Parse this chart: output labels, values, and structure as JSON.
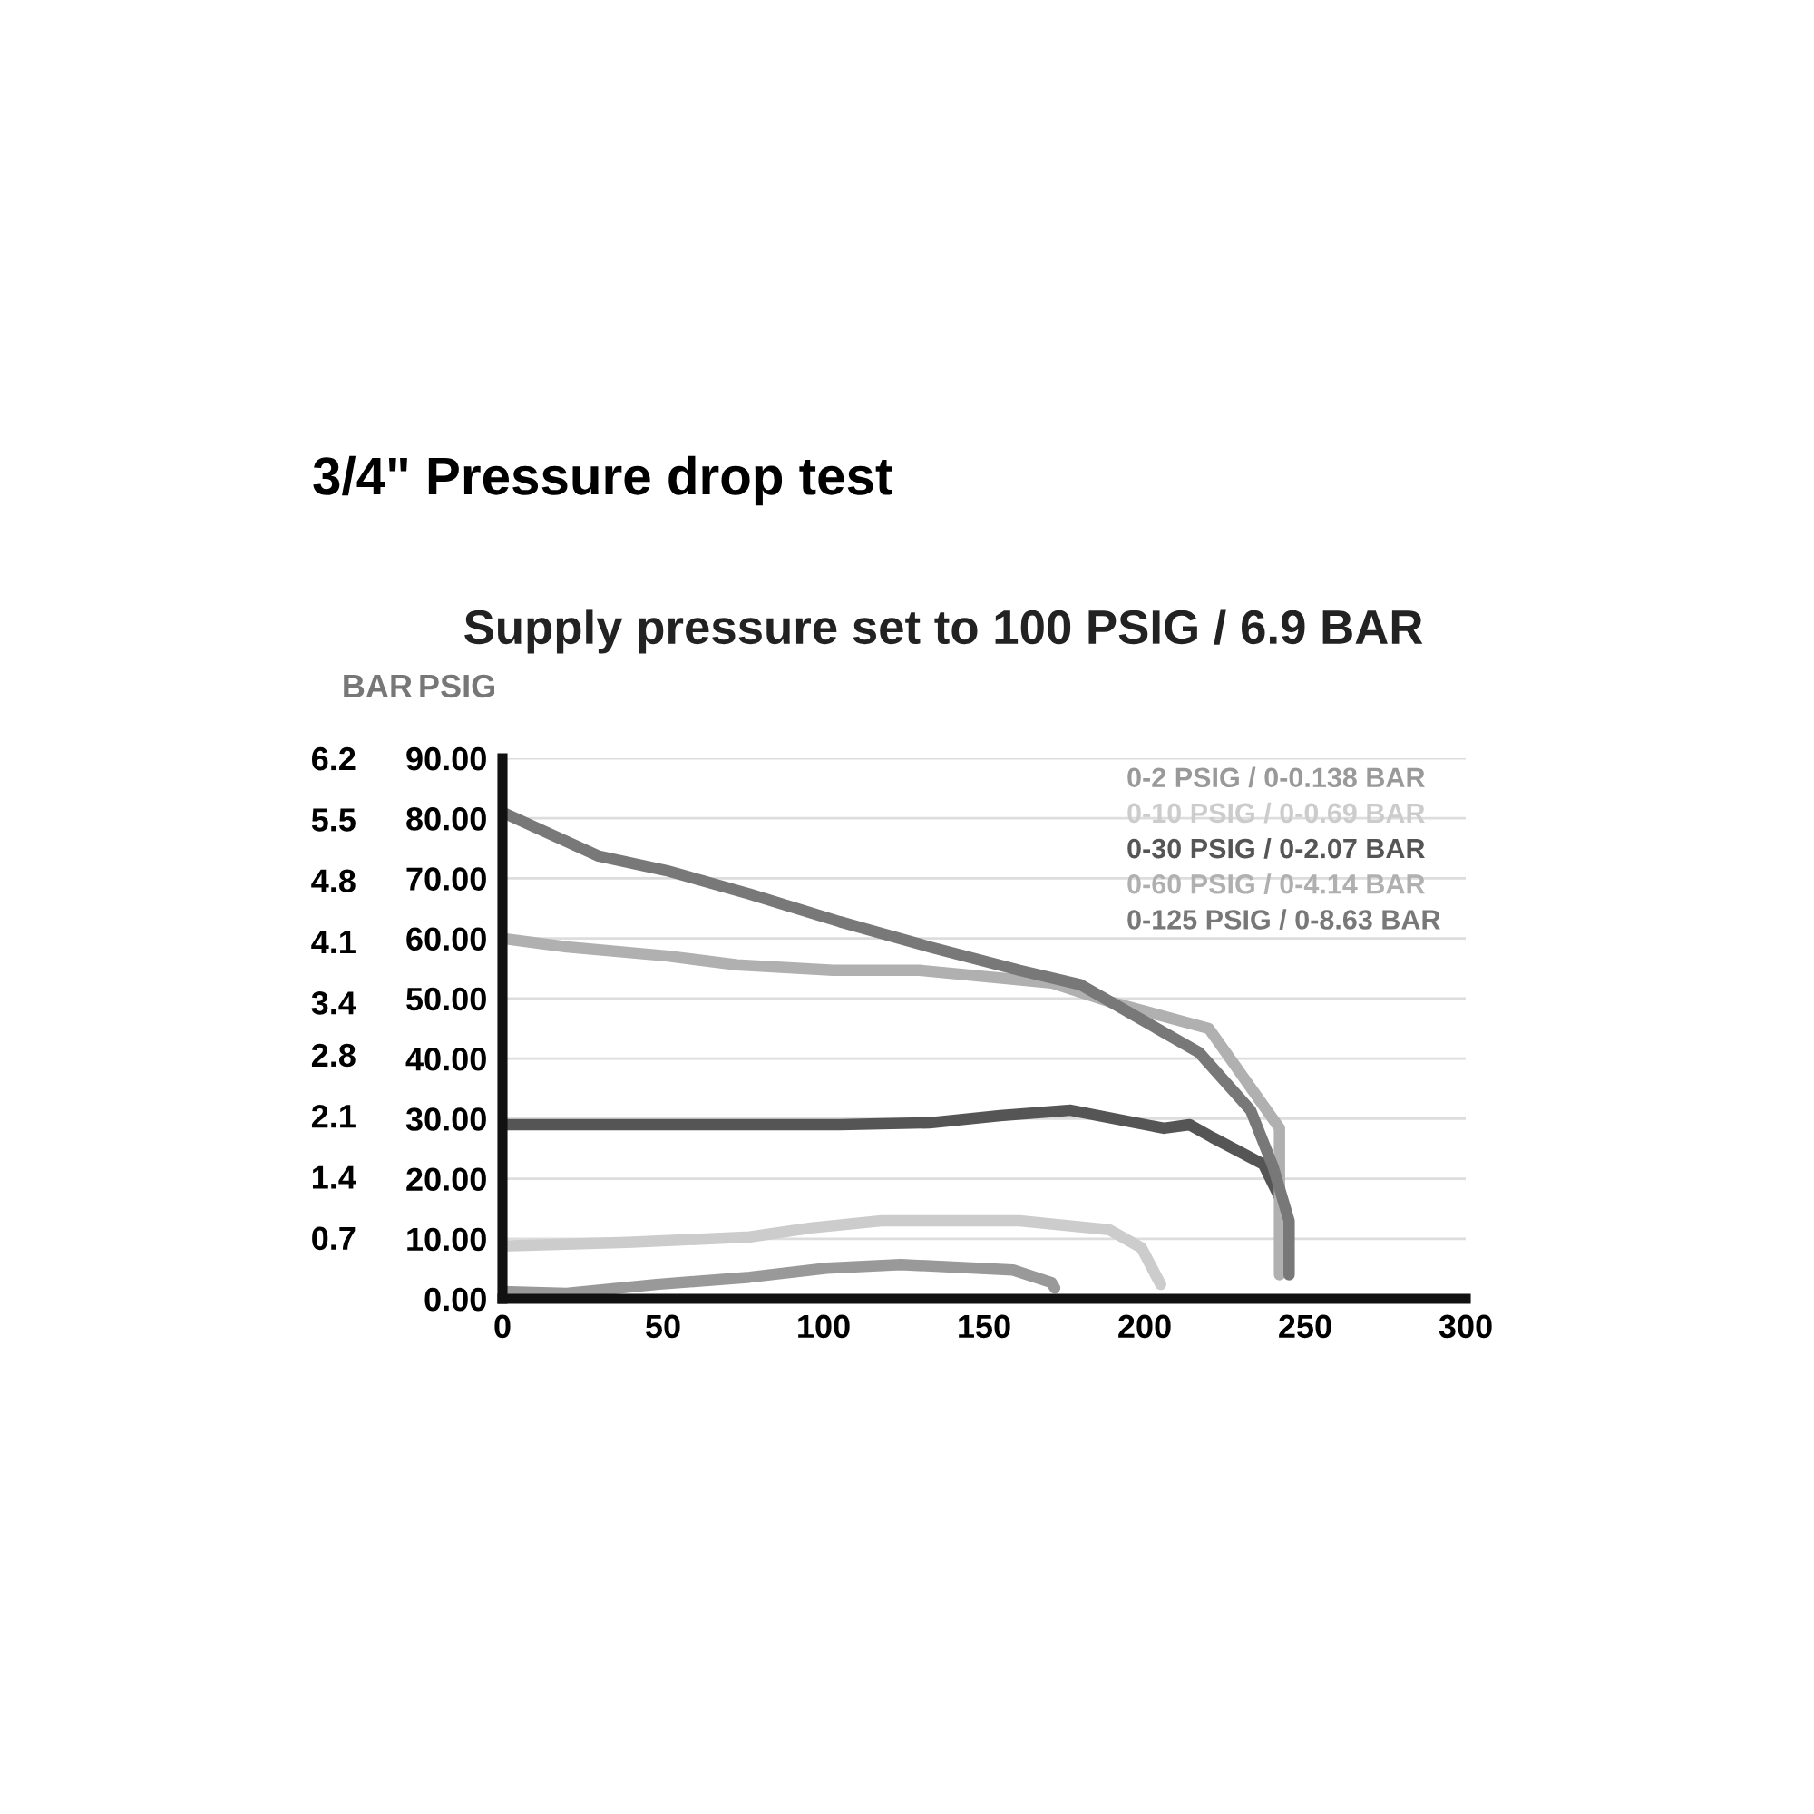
{
  "chart_data": {
    "type": "line",
    "title": "3/4\" Pressure drop test",
    "subtitle": "Supply pressure set to 100 PSIG / 6.9 BAR",
    "ylabel": "PSIG",
    "y2label": "BAR",
    "xlim": [
      0,
      300
    ],
    "xticks": [
      0,
      50,
      100,
      150,
      200,
      250,
      300
    ],
    "ylim": [
      0,
      90
    ],
    "yticks": [
      {
        "value": 0,
        "label": "0.00"
      },
      {
        "value": 10,
        "label": "10.00"
      },
      {
        "value": 20,
        "label": "20.00"
      },
      {
        "value": 30,
        "label": "30.00"
      },
      {
        "value": 40,
        "label": "40.00"
      },
      {
        "value": 50,
        "label": "50.00"
      },
      {
        "value": 60,
        "label": "60.00"
      },
      {
        "value": 70,
        "label": "70.00"
      },
      {
        "value": 80,
        "label": "80.00"
      },
      {
        "value": 90,
        "label": "90.00"
      }
    ],
    "y2lim": [
      0,
      6.2
    ],
    "y2ticks": [
      0.7,
      1.4,
      2.1,
      2.8,
      3.4,
      4.1,
      4.8,
      5.5,
      6.2
    ],
    "grid": "y",
    "legend": "top right",
    "marker": "none",
    "line_style": "solid",
    "series": [
      {
        "name": "0-2 PSIG / 0-0.138 BAR",
        "color": "#999999",
        "x": [
          0,
          20,
          48,
          77,
          101,
          124,
          159,
          171,
          172
        ],
        "values": [
          1.2,
          0.9,
          2.4,
          3.6,
          5.1,
          5.7,
          4.8,
          2.7,
          1.8
        ]
      },
      {
        "name": "0-10 PSIG / 0-0.69 BAR",
        "color": "#cccccc",
        "x": [
          0,
          39,
          77,
          96,
          118,
          161,
          189,
          199,
          205
        ],
        "values": [
          8.8,
          9.4,
          10.3,
          11.8,
          13,
          13,
          11.5,
          8.5,
          2.4
        ]
      },
      {
        "name": "0-30 PSIG / 0-2.07 BAR",
        "color": "#555555",
        "x": [
          0,
          51,
          105,
          133,
          155,
          177,
          206,
          214,
          221,
          237,
          242
        ],
        "values": [
          29,
          29,
          29,
          29.3,
          30.5,
          31.4,
          28.4,
          29,
          26.9,
          22.4,
          16.9
        ]
      },
      {
        "name": "0-60 PSIG / 0-4.14 BAR",
        "color": "#b0b0b0",
        "x": [
          0,
          20,
          51,
          73,
          103,
          130,
          171,
          189,
          220,
          242,
          242
        ],
        "values": [
          60,
          58.6,
          57.1,
          55.6,
          54.7,
          54.7,
          52.6,
          49.5,
          45,
          28.4,
          4
        ]
      },
      {
        "name": "0-125 PSIG / 0-8.63 BAR",
        "color": "#787878",
        "x": [
          0,
          30,
          51,
          77,
          105,
          133,
          161,
          180,
          217,
          233,
          240,
          245,
          245
        ],
        "values": [
          81,
          73.7,
          71.3,
          67.4,
          62.8,
          58.6,
          54.7,
          52.3,
          41,
          31.4,
          22,
          13,
          4
        ]
      }
    ]
  }
}
